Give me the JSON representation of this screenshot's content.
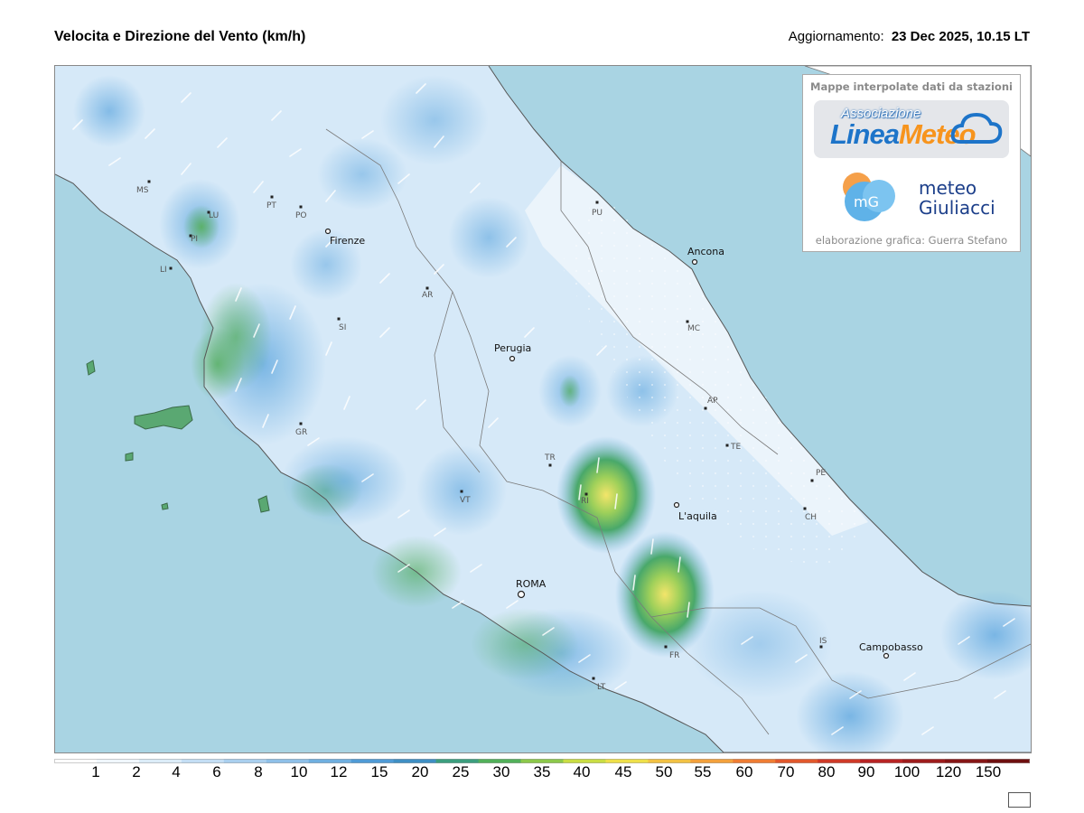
{
  "header": {
    "title": "Velocita e Direzione del Vento  (km/h)",
    "updated_label": "Aggiornamento:",
    "updated_value": "23 Dec 2025, 10.15 LT"
  },
  "logo": {
    "heading": "Mappe interpolate dati da stazioni",
    "brand_sub": "Associazione",
    "brand_main_a": "Linea",
    "brand_main_b": "Meteo",
    "mg_badge": "mG",
    "mg_line1": "meteo",
    "mg_line2": "Giuliacci",
    "credit": "elaborazione grafica: Guerra Stefano"
  },
  "map": {
    "colors": {
      "sea": "#a9d4e3",
      "land_calm": "#e8f3fb",
      "land_light": "#cfe4f6",
      "wind_mid": "#8fc0e8",
      "wind_strong": "#5aa0d9",
      "gust_green": "#4caa6a",
      "gust_yellow": "#e6e65a"
    },
    "cities": [
      {
        "name": "MS",
        "major": false
      },
      {
        "name": "LU",
        "major": false
      },
      {
        "name": "PI",
        "major": false
      },
      {
        "name": "LI",
        "major": false
      },
      {
        "name": "PT",
        "major": false
      },
      {
        "name": "PO",
        "major": false
      },
      {
        "name": "Firenze",
        "major": true
      },
      {
        "name": "AR",
        "major": false
      },
      {
        "name": "SI",
        "major": false
      },
      {
        "name": "GR",
        "major": false
      },
      {
        "name": "Perugia",
        "major": true
      },
      {
        "name": "PU",
        "major": false
      },
      {
        "name": "Ancona",
        "major": true
      },
      {
        "name": "MC",
        "major": false
      },
      {
        "name": "AP",
        "major": false
      },
      {
        "name": "TE",
        "major": false
      },
      {
        "name": "PE",
        "major": false
      },
      {
        "name": "CH",
        "major": false
      },
      {
        "name": "TR",
        "major": false
      },
      {
        "name": "RI",
        "major": false
      },
      {
        "name": "L'aquila",
        "major": true
      },
      {
        "name": "VT",
        "major": false
      },
      {
        "name": "ROMA",
        "major": true
      },
      {
        "name": "FR",
        "major": false
      },
      {
        "name": "LT",
        "major": false
      },
      {
        "name": "IS",
        "major": false
      },
      {
        "name": "Campobasso",
        "major": true
      }
    ]
  },
  "scale": {
    "labels": [
      "1",
      "2",
      "4",
      "6",
      "8",
      "10",
      "12",
      "15",
      "20",
      "25",
      "30",
      "35",
      "40",
      "45",
      "50",
      "55",
      "60",
      "70",
      "80",
      "90",
      "100",
      "120",
      "150"
    ],
    "colors": [
      "#ffffff",
      "#f0f7fd",
      "#dcecf8",
      "#c4def4",
      "#a9cfee",
      "#8ec0e8",
      "#6fafe0",
      "#4f9bd6",
      "#3f8fc4",
      "#3c9e7e",
      "#52b05a",
      "#8cc84b",
      "#c9dd44",
      "#eee04a",
      "#f2c244",
      "#f3a13c",
      "#ef7d33",
      "#e2582c",
      "#cf3a28",
      "#b82424",
      "#9e1c1c",
      "#861515",
      "#6e0f0f"
    ]
  }
}
